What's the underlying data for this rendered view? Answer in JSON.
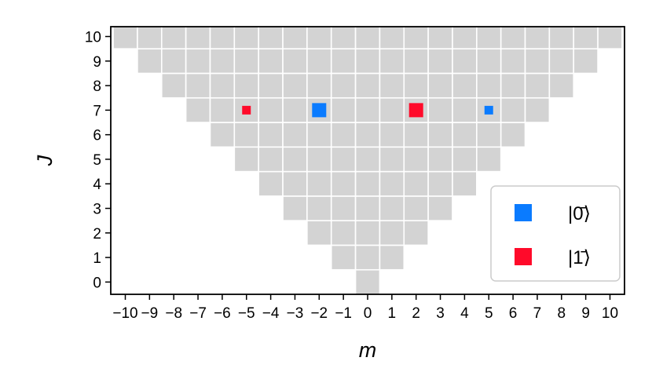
{
  "chart_data": {
    "type": "heatmap",
    "title": "",
    "xlabel": "m",
    "ylabel": "J",
    "xlim": [
      -10.6,
      10.6
    ],
    "ylim": [
      -0.5,
      10.4
    ],
    "x_ticks": [
      -10,
      -9,
      -8,
      -7,
      -6,
      -5,
      -4,
      -3,
      -2,
      -1,
      0,
      1,
      2,
      3,
      4,
      5,
      6,
      7,
      8,
      9,
      10
    ],
    "x_tick_labels": [
      "−10",
      "−9",
      "−8",
      "−7",
      "−6",
      "−5",
      "−4",
      "−3",
      "−2",
      "−1",
      "0",
      "1",
      "2",
      "3",
      "4",
      "5",
      "6",
      "7",
      "8",
      "9",
      "10"
    ],
    "y_ticks": [
      0,
      1,
      2,
      3,
      4,
      5,
      6,
      7,
      8,
      9,
      10
    ],
    "y_tick_labels": [
      "0",
      "1",
      "2",
      "3",
      "4",
      "5",
      "6",
      "7",
      "8",
      "9",
      "10"
    ],
    "grid": "cells where |m| <= J",
    "background_cell_color": "#d3d3d3",
    "cell_edge_color": "#ffffff",
    "series": [
      {
        "name": "|0̄⟩",
        "color": "#0a7bff",
        "points": [
          {
            "m": -2,
            "J": 7,
            "weight": "large"
          },
          {
            "m": 5,
            "J": 7,
            "weight": "small"
          }
        ]
      },
      {
        "name": "|1̄⟩",
        "color": "#ff0a2a",
        "points": [
          {
            "m": -5,
            "J": 7,
            "weight": "small"
          },
          {
            "m": 2,
            "J": 7,
            "weight": "large"
          }
        ]
      }
    ],
    "legend_position": "lower-right"
  }
}
